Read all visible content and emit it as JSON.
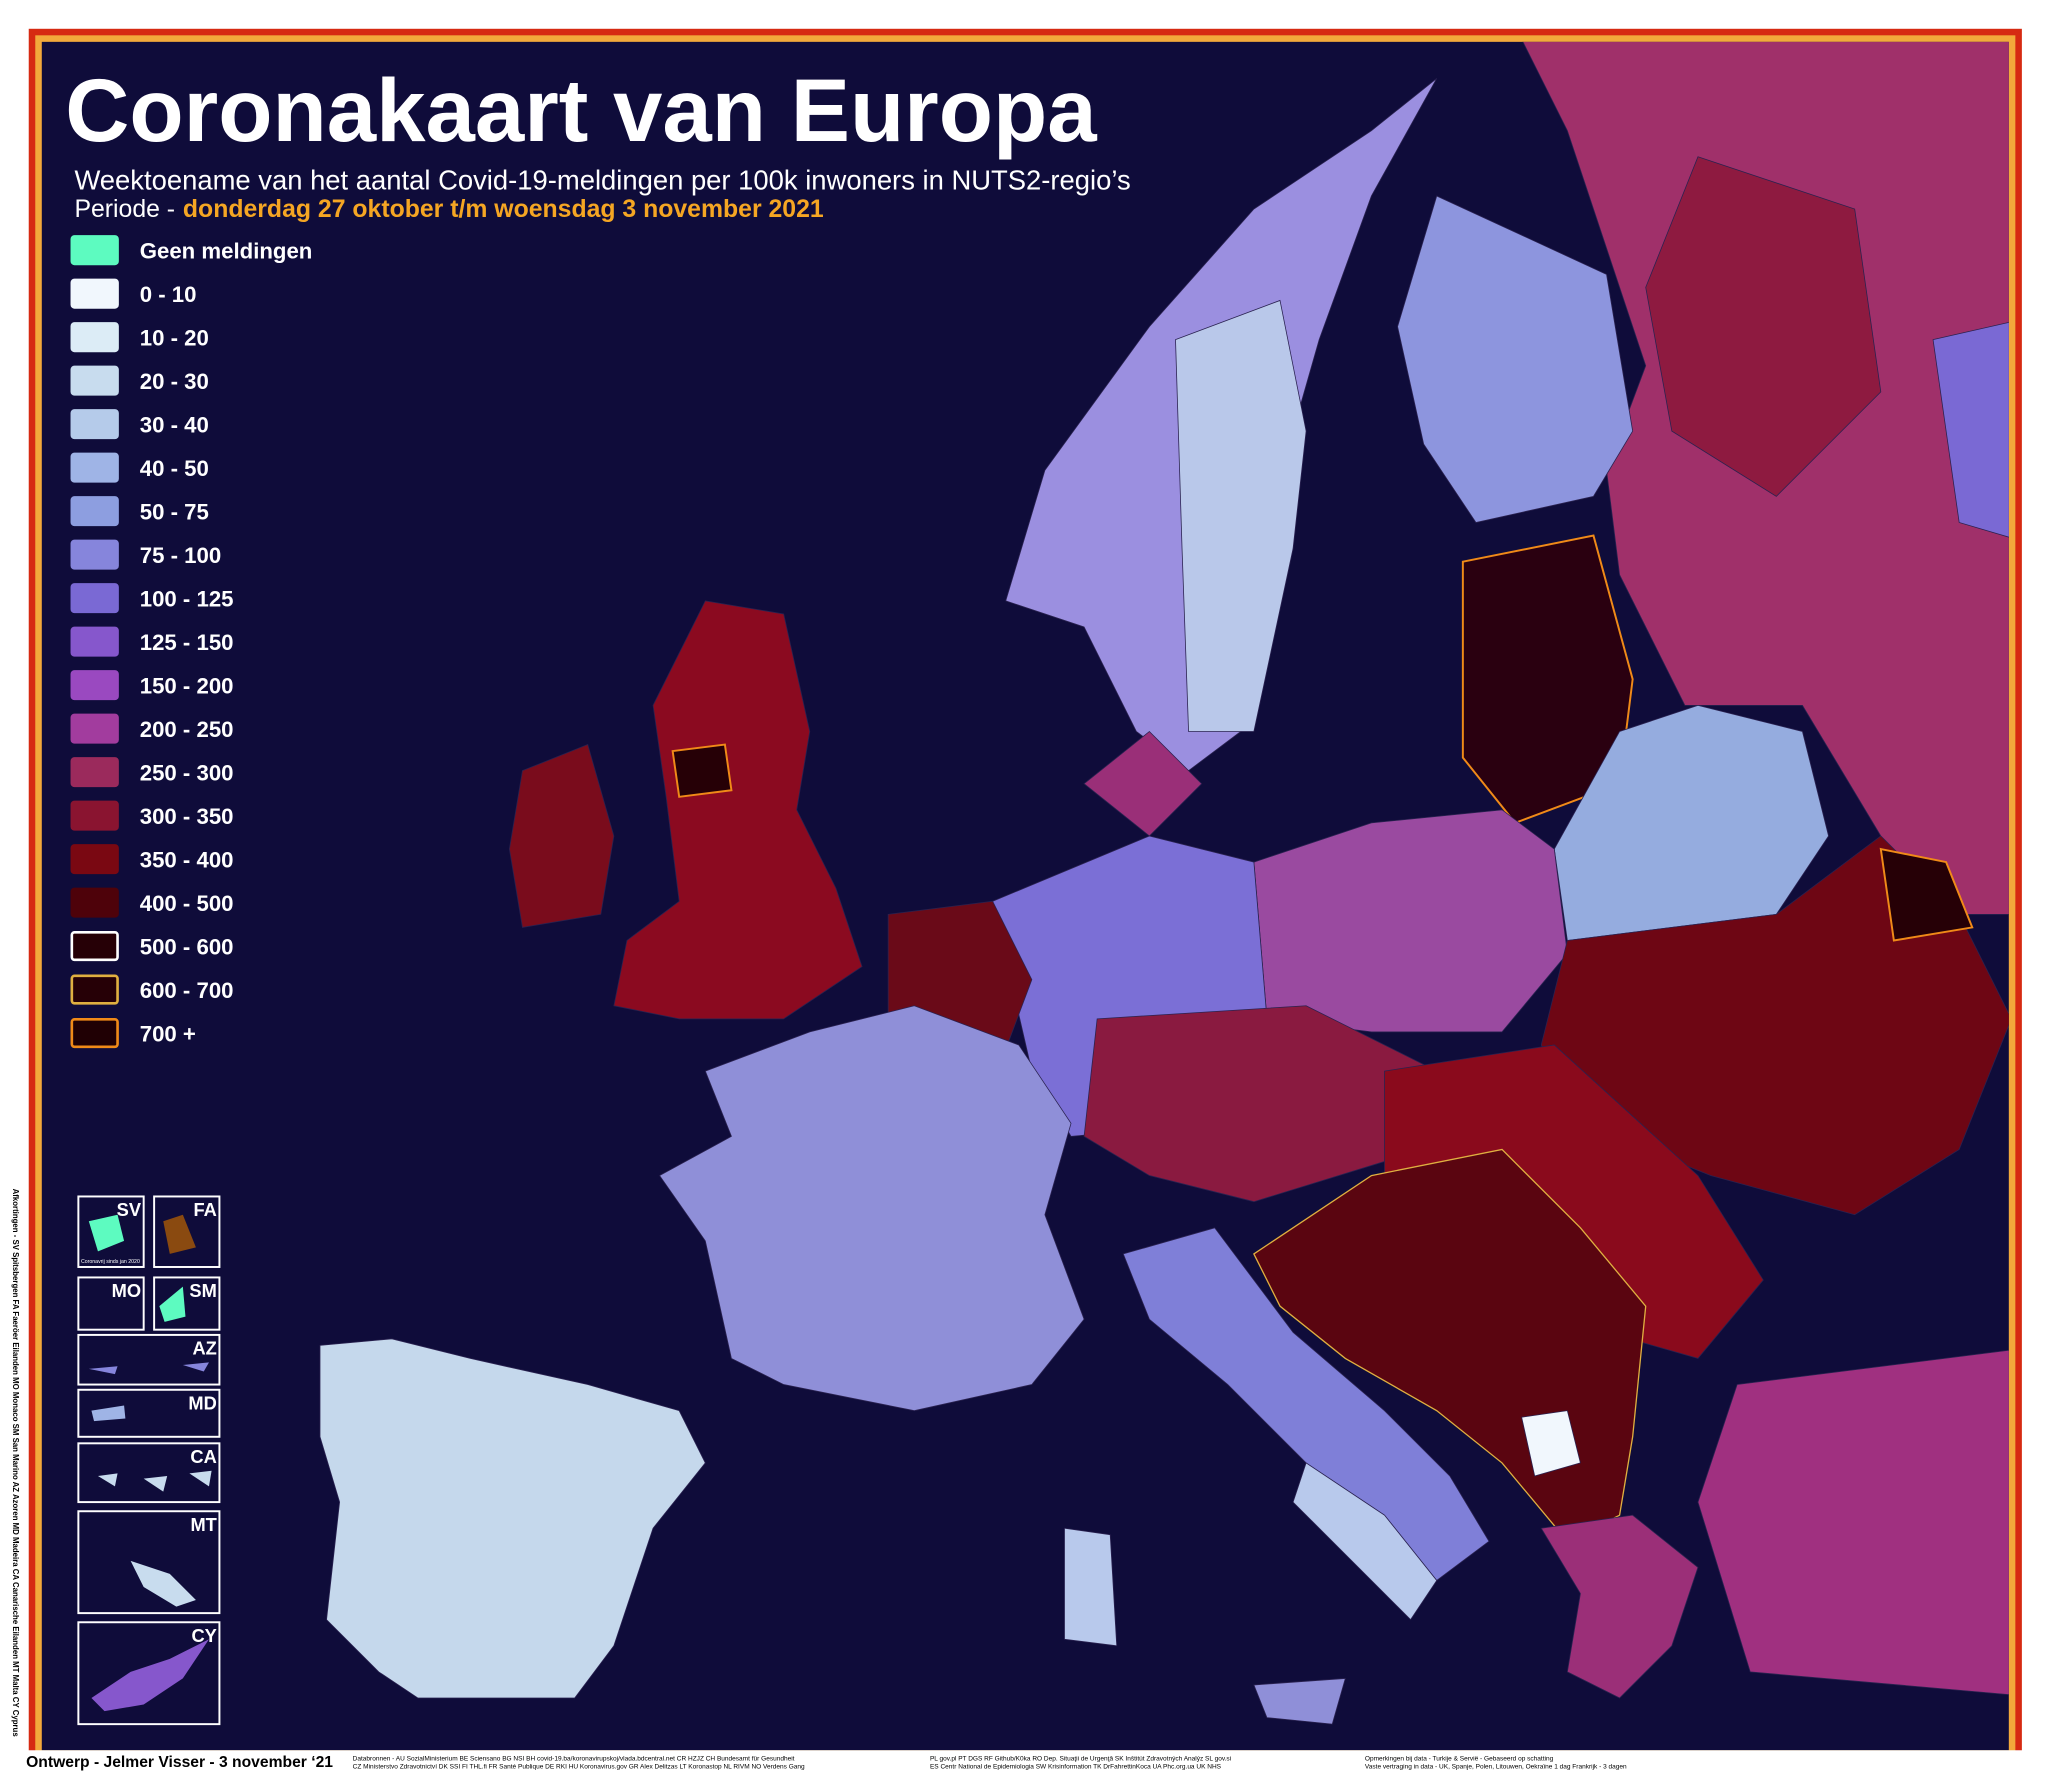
{
  "header": {
    "title": "Coronakaart van Europa",
    "subtitle": "Weektoename van het aantal Covid-19-meldingen per 100k inwoners in NUTS2-regio’s",
    "period_prefix": "Periode -",
    "period": "donderdag 27 oktober t/m woensdag 3 november 2021"
  },
  "legend": {
    "items": [
      {
        "label": "Geen meldingen",
        "color": "#5dfbc0",
        "border": "#5dfbc0"
      },
      {
        "label": "0 - 10",
        "color": "#f1f7fd",
        "border": "#f1f7fd"
      },
      {
        "label": "10 - 20",
        "color": "#dcecf6",
        "border": "#dcecf6"
      },
      {
        "label": "20 - 30",
        "color": "#c8dcee",
        "border": "#c8dcee"
      },
      {
        "label": "30 - 40",
        "color": "#b5cbea",
        "border": "#b5cbea"
      },
      {
        "label": "40 - 50",
        "color": "#9fb4e6",
        "border": "#9fb4e6"
      },
      {
        "label": "50 - 75",
        "color": "#8d9ee0",
        "border": "#8d9ee0"
      },
      {
        "label": "75 - 100",
        "color": "#8685dc",
        "border": "#8685dc"
      },
      {
        "label": "100 - 125",
        "color": "#7a69d4",
        "border": "#7a69d4"
      },
      {
        "label": "125 - 150",
        "color": "#8657cc",
        "border": "#8657cc"
      },
      {
        "label": "150 - 200",
        "color": "#9a49c0",
        "border": "#9a49c0"
      },
      {
        "label": "200 - 250",
        "color": "#a23c9e",
        "border": "#a23c9e"
      },
      {
        "label": "250 - 300",
        "color": "#9b2a5c",
        "border": "#9b2a5c"
      },
      {
        "label": "300 - 350",
        "color": "#8a1430",
        "border": "#8a1430"
      },
      {
        "label": "350 - 400",
        "color": "#7a0812",
        "border": "#7a0812"
      },
      {
        "label": "400 - 500",
        "color": "#4e020a",
        "border": "#4e020a"
      },
      {
        "label": "500 - 600",
        "color": "#260006",
        "border": "#ffffff"
      },
      {
        "label": "600 - 700",
        "color": "#260006",
        "border": "#e0b040"
      },
      {
        "label": "700 +",
        "color": "#200004",
        "border": "#f08a18"
      }
    ]
  },
  "insets": {
    "labels": [
      "SV",
      "FA",
      "MO",
      "SM",
      "AZ",
      "MD",
      "CA",
      "MT",
      "CY"
    ],
    "note": "Coronavrij sinds jan 2020"
  },
  "sidebar": "Afkortingen - SV Spitsbergen FA Faeröer Eilanden MO Monaco SM San Marino AZ Azoren MD Madeira CA Canarische Eilanden MT Malta CY Cyprus",
  "footer": {
    "credit": "Ontwerp - Jelmer Visser - 3 november ‘21",
    "sources": [
      "Databronnen - AU SozialMinisterium BE Sciensano BG NSI BH covid-19.ba/koronavirupskoj/vlada.bdcentral.net CR HZJZ CH Bundesamt für Gesundheit",
      "CZ Ministerstvo Zdravotnictví DK SSI FI THL.fi FR Santé Publique DE RKI HU Koronavirus.gov GR Alex Delitzas LT Koronastop NL RIVM NO Verdens Gang",
      "PL gov.pl PT DGS RF Github/K0ka RO Dep. Situaţii de Urgenţă SK Inštitút Zdravotných Analýz SL gov.si",
      "ES Centr National de Epidemiologia SW Krisinformation TK DrFahrettinKoca UA Phc.org.ua UK NHS"
    ],
    "remarks": [
      "Opmerkingen bij data - Turkije & Servië - Gebaseerd op schatting",
      "Vaste vertraging in data - UK, Spanje, Polen, Litouwen, Oekraïne 1 dag Frankrijk - 3 dagen"
    ]
  }
}
